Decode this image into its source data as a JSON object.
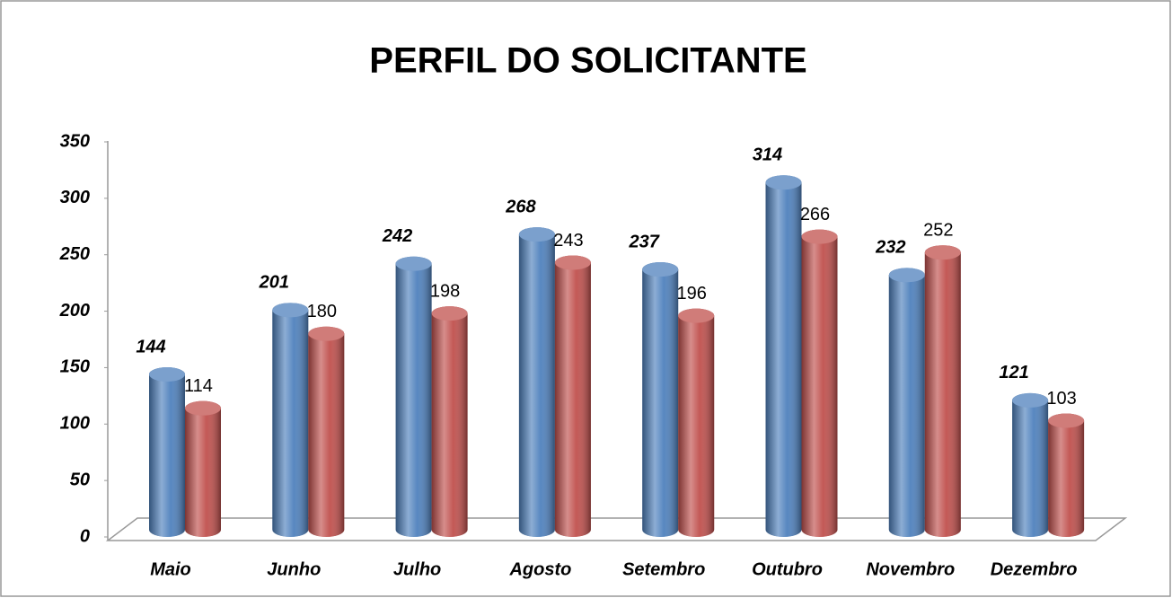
{
  "chart_data": {
    "type": "bar3d",
    "title": "PERFIL DO SOLICITANTE",
    "categories": [
      "Maio",
      "Junho",
      "Julho",
      "Agosto",
      "Setembro",
      "Outubro",
      "Novembro",
      "Dezembro"
    ],
    "series": [
      {
        "color": "#4f81bd",
        "values": [
          144,
          201,
          242,
          268,
          237,
          314,
          232,
          121
        ]
      },
      {
        "color": "#c0504d",
        "values": [
          114,
          180,
          198,
          243,
          196,
          266,
          252,
          103
        ]
      }
    ],
    "ylim": [
      0,
      350
    ],
    "yticks": [
      0,
      50,
      100,
      150,
      200,
      250,
      300,
      350
    ],
    "grid": false
  }
}
